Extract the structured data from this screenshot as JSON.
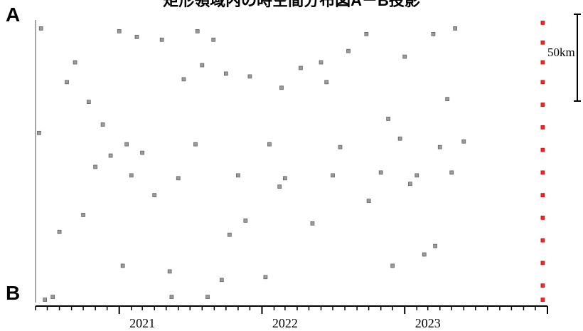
{
  "chart_data": {
    "type": "scatter",
    "title": "矩形領域内の時空間分布図A－B投影",
    "end_labels": {
      "top": "A",
      "bottom": "B"
    },
    "scale_label": "50km",
    "xlabel": "",
    "ylabel": "",
    "x_tick_labels": [
      "2021",
      "2022",
      "2023"
    ],
    "xlim": [
      "2020-06-01",
      "2024-01-01"
    ],
    "ylim": [
      0,
      100
    ],
    "grid": false,
    "series": [
      {
        "color": "#808080",
        "points": [
          [
            "2020-06-15",
            97
          ],
          [
            "2020-08-20",
            78
          ],
          [
            "2020-09-10",
            85
          ],
          [
            "2020-10-15",
            71
          ],
          [
            "2020-11-20",
            63
          ],
          [
            "2020-06-10",
            60
          ],
          [
            "2020-08-01",
            25
          ],
          [
            "2020-10-01",
            31
          ],
          [
            "2021-01-01",
            96
          ],
          [
            "2021-02-15",
            94
          ],
          [
            "2021-04-20",
            93
          ],
          [
            "2021-06-15",
            79
          ],
          [
            "2021-07-20",
            96
          ],
          [
            "2021-08-01",
            84
          ],
          [
            "2021-08-30",
            93
          ],
          [
            "2021-10-01",
            81
          ],
          [
            "2021-12-01",
            80
          ],
          [
            "2022-02-20",
            76
          ],
          [
            "2022-04-10",
            83
          ],
          [
            "2022-06-15",
            78
          ],
          [
            "2022-08-10",
            89
          ],
          [
            "2022-09-25",
            95
          ],
          [
            "2022-11-20",
            65
          ],
          [
            "2023-01-01",
            87
          ],
          [
            "2023-03-15",
            95
          ],
          [
            "2023-04-20",
            72
          ],
          [
            "2023-05-10",
            97
          ],
          [
            "2020-12-10",
            52
          ],
          [
            "2021-04-01",
            38
          ],
          [
            "2021-10-10",
            24
          ],
          [
            "2022-02-15",
            41
          ],
          [
            "2022-05-10",
            28
          ],
          [
            "2022-10-01",
            36
          ],
          [
            "2023-01-15",
            42
          ],
          [
            "2023-03-20",
            20
          ],
          [
            "2021-01-10",
            13
          ],
          [
            "2021-05-10",
            11
          ],
          [
            "2021-09-20",
            8
          ],
          [
            "2022-01-10",
            9
          ],
          [
            "2020-07-15",
            2
          ],
          [
            "2020-06-25",
            1
          ],
          [
            "2021-05-15",
            2
          ],
          [
            "2021-08-15",
            2
          ],
          [
            "2021-11-20",
            29
          ],
          [
            "2021-03-01",
            53
          ],
          [
            "2022-06-01",
            85
          ],
          [
            "2022-12-01",
            13
          ],
          [
            "2023-02-20",
            17
          ],
          [
            "2023-04-01",
            55
          ],
          [
            "2020-11-01",
            48
          ],
          [
            "2021-02-01",
            45
          ],
          [
            "2021-06-01",
            44
          ],
          [
            "2021-11-01",
            45
          ],
          [
            "2022-03-01",
            44
          ],
          [
            "2022-07-01",
            45
          ],
          [
            "2022-11-01",
            46
          ],
          [
            "2023-02-01",
            45
          ],
          [
            "2023-05-01",
            46
          ],
          [
            "2021-01-20",
            56
          ],
          [
            "2021-07-15",
            56
          ],
          [
            "2022-01-20",
            56
          ],
          [
            "2022-07-20",
            55
          ],
          [
            "2022-12-20",
            58
          ],
          [
            "2023-06-01",
            57
          ]
        ]
      },
      {
        "color": "#ff2020",
        "points": [
          [
            "2023-12-20",
            99
          ],
          [
            "2023-12-20",
            92
          ],
          [
            "2023-12-20",
            85
          ],
          [
            "2023-12-20",
            78
          ],
          [
            "2023-12-20",
            70
          ],
          [
            "2023-12-20",
            62
          ],
          [
            "2023-12-20",
            54
          ],
          [
            "2023-12-20",
            46
          ],
          [
            "2023-12-20",
            38
          ],
          [
            "2023-12-20",
            30
          ],
          [
            "2023-12-20",
            22
          ],
          [
            "2023-12-20",
            14
          ],
          [
            "2023-12-20",
            6
          ],
          [
            "2023-12-20",
            1
          ]
        ]
      }
    ]
  }
}
